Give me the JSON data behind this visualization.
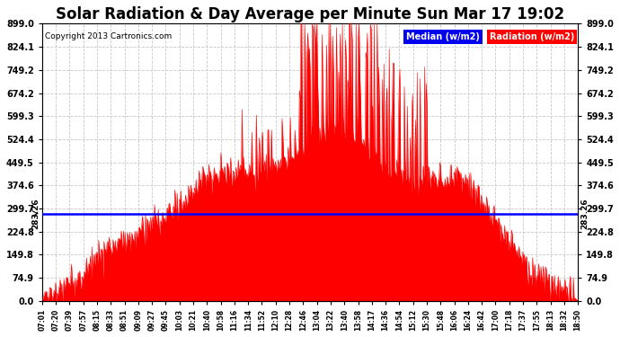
{
  "title": "Solar Radiation & Day Average per Minute Sun Mar 17 19:02",
  "copyright": "Copyright 2013 Cartronics.com",
  "median_value": 283.26,
  "y_ticks": [
    0.0,
    74.9,
    149.8,
    224.8,
    299.7,
    374.6,
    449.5,
    524.4,
    599.3,
    674.2,
    749.2,
    824.1,
    899.0
  ],
  "y_max": 899.0,
  "y_min": 0.0,
  "x_tick_labels": [
    "07:01",
    "07:20",
    "07:39",
    "07:57",
    "08:15",
    "08:33",
    "08:51",
    "09:09",
    "09:27",
    "09:45",
    "10:03",
    "10:21",
    "10:40",
    "10:58",
    "11:16",
    "11:34",
    "11:52",
    "12:10",
    "12:28",
    "12:46",
    "13:04",
    "13:22",
    "13:40",
    "13:58",
    "14:17",
    "14:36",
    "14:54",
    "15:12",
    "15:30",
    "15:48",
    "16:06",
    "16:24",
    "16:42",
    "17:00",
    "17:18",
    "17:37",
    "17:55",
    "18:13",
    "18:32",
    "18:50"
  ],
  "radiation_color": "#FF0000",
  "median_line_color": "#0000FF",
  "background_color": "#FFFFFF",
  "grid_color": "#C8C8C8",
  "title_fontsize": 12,
  "legend_median_bg": "#0000EE",
  "legend_radiation_bg": "#FF0000",
  "legend_text_color": "#FFFFFF",
  "figsize": [
    6.9,
    3.75
  ],
  "dpi": 100
}
